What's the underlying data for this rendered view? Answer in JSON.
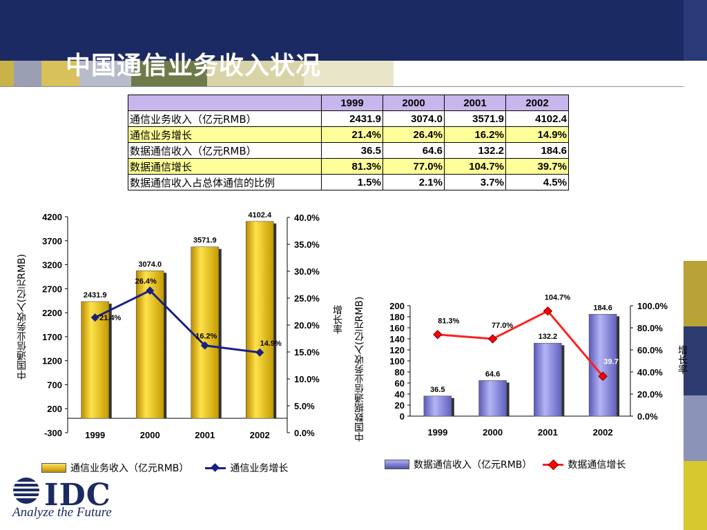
{
  "slide": {
    "title": "中国通信业务收入状况"
  },
  "colors": {
    "navy": "#1b2a62",
    "gold_bar": "#f0c000",
    "blue_bar": "#8080e0",
    "line_navy": "#1a2080",
    "line_red": "#ff2020",
    "marker_red": "#ff0000"
  },
  "table": {
    "headers": [
      "",
      "1999",
      "2000",
      "2001",
      "2002"
    ],
    "rows": [
      {
        "label": "通信业务收入（亿元RMB）",
        "values": [
          "2431.9",
          "3074.0",
          "3571.9",
          "4102.4"
        ],
        "highlight": false
      },
      {
        "label": "通信业务增长",
        "values": [
          "21.4%",
          "26.4%",
          "16.2%",
          "14.9%"
        ],
        "highlight": true
      },
      {
        "label": "数据通信收入（亿元RMB）",
        "values": [
          "36.5",
          "64.6",
          "132.2",
          "184.6"
        ],
        "highlight": false
      },
      {
        "label": "数据通信增长",
        "values": [
          "81.3%",
          "77.0%",
          "104.7%",
          "39.7%"
        ],
        "highlight": true
      },
      {
        "label": "数据通信收入占总体通信的比例",
        "values": [
          "1.5%",
          "2.1%",
          "3.7%",
          "4.5%"
        ],
        "highlight": false
      }
    ]
  },
  "chart_data": [
    {
      "type": "bar",
      "categories": [
        "1999",
        "2000",
        "2001",
        "2002"
      ],
      "series": [
        {
          "name": "通信业务收入（亿元RMB）",
          "type": "bar",
          "axis": "left",
          "values": [
            2431.9,
            3074.0,
            3571.9,
            4102.4
          ],
          "labels": [
            "2431.9",
            "3074.0",
            "3571.9",
            "4102.4"
          ]
        },
        {
          "name": "通信业务增长",
          "type": "line",
          "axis": "right",
          "values": [
            21.4,
            26.4,
            16.2,
            14.9
          ],
          "labels": [
            "21.4%",
            "26.4%",
            "16.2%",
            "14.9%"
          ]
        }
      ],
      "ylabel": "中国通信业务收入(亿元RMB)",
      "y2label": "增长率",
      "ylim": [
        -300,
        4200
      ],
      "yticks": [
        "4200",
        "3700",
        "3200",
        "2700",
        "2200",
        "1700",
        "1200",
        "700",
        "200",
        "-300"
      ],
      "y2lim": [
        0,
        40
      ],
      "y2ticks": [
        "40.0%",
        "35.0%",
        "30.0%",
        "25.0%",
        "20.0%",
        "15.0%",
        "10.0%",
        "5.0%",
        "0.0%"
      ],
      "legend": [
        "通信业务收入（亿元RMB）",
        "通信业务增长"
      ],
      "legend_position": "bottom"
    },
    {
      "type": "bar",
      "categories": [
        "1999",
        "2000",
        "2001",
        "2002"
      ],
      "series": [
        {
          "name": "数据通信收入（亿元RMB）",
          "type": "bar",
          "axis": "left",
          "values": [
            36.5,
            64.6,
            132.2,
            184.6
          ],
          "labels": [
            "36.5",
            "64.6",
            "132.2",
            "184.6"
          ]
        },
        {
          "name": "数据通信增长",
          "type": "line",
          "axis": "right",
          "values": [
            81.3,
            77.0,
            104.7,
            39.7
          ],
          "labels": [
            "81.3%",
            "77.0%",
            "104.7%",
            "39.7"
          ]
        }
      ],
      "ylabel": "中国数据通信业务收入(亿元RMB)",
      "y2label": "增长率",
      "ylim": [
        0,
        200
      ],
      "yticks": [
        "200",
        "180",
        "160",
        "140",
        "120",
        "100",
        "80",
        "60",
        "40",
        "20",
        "0"
      ],
      "y2lim": [
        0,
        110
      ],
      "y2ticks": [
        "100.0%",
        "80.0%",
        "60.0%",
        "40.0%",
        "20.0%",
        "0.0%"
      ],
      "legend": [
        "数据通信收入（亿元RMB）",
        "数据通信增长"
      ],
      "legend_position": "bottom"
    }
  ],
  "logo": {
    "name": "IDC",
    "tagline": "Analyze the Future"
  }
}
